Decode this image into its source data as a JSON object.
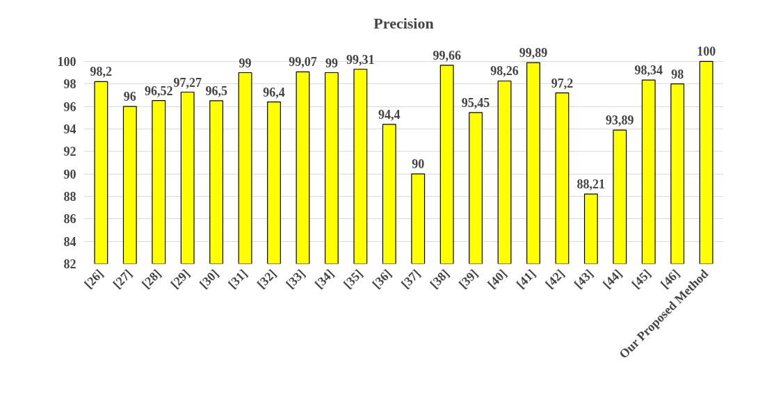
{
  "chart_data": {
    "type": "bar",
    "title": "Precision",
    "categories": [
      "[26]",
      "[27]",
      "[28]",
      "[29]",
      "[30]",
      "[31]",
      "[32]",
      "[33]",
      "[34]",
      "[35]",
      "[36]",
      "[37]",
      "[38]",
      "[39]",
      "[40]",
      "[41]",
      "[42]",
      "[43]",
      "[44]",
      "[45]",
      "[46]",
      "Our Proposed Method"
    ],
    "values": [
      98.2,
      96,
      96.52,
      97.27,
      96.5,
      99,
      96.4,
      99.07,
      99,
      99.31,
      94.4,
      90,
      99.66,
      95.45,
      98.26,
      99.89,
      97.2,
      88.21,
      93.89,
      98.34,
      98,
      100
    ],
    "value_labels": [
      "98,2",
      "96",
      "96,52",
      "97,27",
      "96,5",
      "99",
      "96,4",
      "99,07",
      "99",
      "99,31",
      "94,4",
      "90",
      "99,66",
      "95,45",
      "98,26",
      "99,89",
      "97,2",
      "88,21",
      "93,89",
      "98,34",
      "98",
      "100"
    ],
    "color": "#ffff00",
    "ylim": [
      82,
      100
    ],
    "yticks": [
      82,
      84,
      86,
      88,
      90,
      92,
      94,
      96,
      98,
      100
    ],
    "grid": "y"
  }
}
